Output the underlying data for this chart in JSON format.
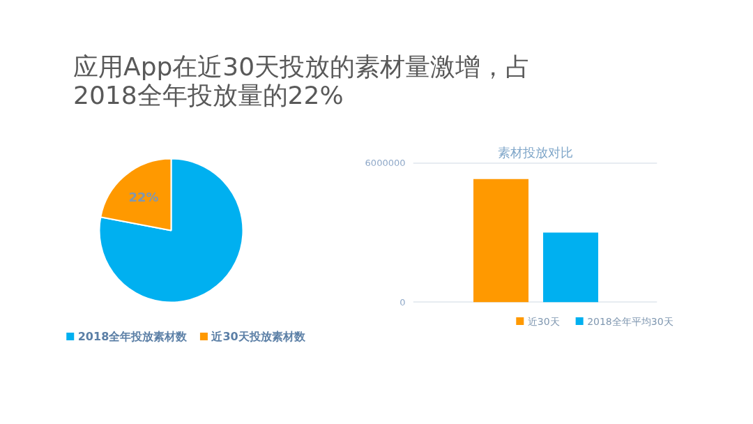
{
  "chart_data": [
    {
      "type": "pie",
      "title": "应用App在近30天投放的素材量激增，占2018全年投放量的22%",
      "categories": [
        "2018全年投放素材数",
        "近30天投放素材数"
      ],
      "values": [
        78,
        22
      ],
      "colors": [
        "#00b0f0",
        "#ff9900"
      ],
      "value_labels": [
        null,
        "22%"
      ],
      "legend": "bottom"
    },
    {
      "type": "bar",
      "title": "素材投放对比",
      "categories": [
        null
      ],
      "series": [
        {
          "name": "近30天",
          "color": "#ff9900",
          "values": [
            5300000
          ]
        },
        {
          "name": "2018全年平均30天",
          "color": "#00b0f0",
          "values": [
            3000000
          ]
        }
      ],
      "ylim": [
        0,
        6000000
      ],
      "yticks": [
        0,
        6000000
      ],
      "grid": "y",
      "legend": "bottom",
      "tick_labels": "y"
    }
  ]
}
